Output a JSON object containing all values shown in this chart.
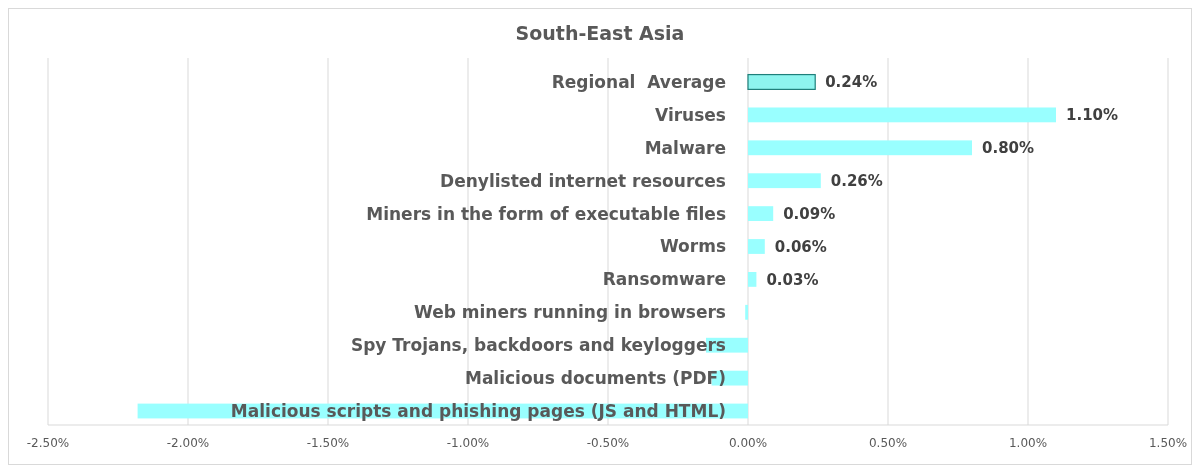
{
  "chart_data": {
    "type": "bar",
    "orientation": "horizontal",
    "title": "South-East Asia",
    "categories": [
      "Regional  Average",
      "Viruses",
      "Malware",
      "Denylisted internet resources",
      "Miners in the form of executable files",
      "Worms",
      "Ransomware",
      "Web miners running in browsers",
      "Spy Trojans, backdoors and keyloggers",
      "Malicious documents (PDF)",
      "Malicious scripts and phishing pages (JS and HTML)"
    ],
    "values": [
      0.24,
      1.1,
      0.8,
      0.26,
      0.09,
      0.06,
      0.03,
      -0.01,
      -0.15,
      -0.13,
      -2.18
    ],
    "value_labels": [
      "0.24%",
      "1.10%",
      "0.80%",
      "0.26%",
      "0.09%",
      "0.06%",
      "0.03%",
      null,
      null,
      null,
      null
    ],
    "colors": [
      "#8ef5ef",
      "#99ffff",
      "#99ffff",
      "#99ffff",
      "#99ffff",
      "#99ffff",
      "#99ffff",
      "#99ffff",
      "#99ffff",
      "#99ffff",
      "#99ffff"
    ],
    "xlim": [
      -2.5,
      1.5
    ],
    "xticks": [
      {
        "value": -2.5,
        "label": "-2.50%"
      },
      {
        "value": -2,
        "label": "-2.00%"
      },
      {
        "value": -1.5,
        "label": "-1.50%"
      },
      {
        "value": -1,
        "label": "-1.00%"
      },
      {
        "value": -0.5,
        "label": "-0.50%"
      },
      {
        "value": 0,
        "label": "0.00%"
      },
      {
        "value": 0.5,
        "label": "0.50%"
      },
      {
        "value": 1,
        "label": "1.00%"
      },
      {
        "value": 1.5,
        "label": "1.50%"
      }
    ],
    "grid": "x"
  }
}
